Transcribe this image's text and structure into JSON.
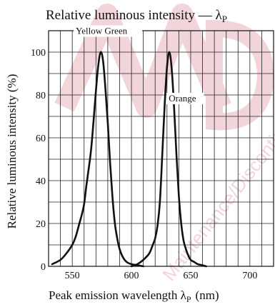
{
  "chart_data": {
    "type": "line",
    "title": "Relative luminous intensity — λ",
    "title_subscript": "P",
    "xlabel": "Peak emission wavelength λ",
    "xlabel_subscript": "P",
    "xlabel_unit": "(nm)",
    "ylabel": "Relative luminous intensity  (%)",
    "xlim": [
      530,
      720
    ],
    "ylim": [
      0,
      110
    ],
    "x_ticks": [
      550,
      600,
      650,
      700
    ],
    "y_ticks": [
      0,
      20,
      40,
      60,
      80,
      100
    ],
    "x_grid": [
      530,
      540,
      550,
      560,
      570,
      580,
      590,
      600,
      610,
      620,
      630,
      640,
      650,
      660,
      670,
      680,
      690,
      700,
      710,
      720
    ],
    "y_grid": [
      0,
      10,
      20,
      30,
      40,
      50,
      60,
      70,
      80,
      90,
      100,
      110
    ],
    "grid": true,
    "series": [
      {
        "name": "Yellow Green",
        "x": [
          533,
          540,
          545,
          550,
          553,
          556,
          558,
          560,
          562,
          564,
          566,
          568,
          570,
          572,
          574,
          576,
          578,
          580,
          582,
          584,
          586,
          588,
          590,
          593,
          596,
          600,
          605,
          610
        ],
        "values": [
          1,
          3,
          6,
          10,
          14,
          20,
          24,
          29,
          38,
          46,
          55,
          68,
          82,
          94,
          100,
          96,
          83,
          67,
          48,
          32,
          20,
          13,
          8,
          4,
          2,
          1,
          0.5,
          0
        ]
      },
      {
        "name": "Orange",
        "x": [
          600,
          605,
          610,
          615,
          618,
          620,
          622,
          624,
          626,
          628,
          630,
          632,
          634,
          636,
          638,
          640,
          642,
          644,
          646,
          648,
          650,
          653,
          656,
          660,
          663
        ],
        "values": [
          0,
          1,
          3,
          6,
          10,
          13,
          19,
          30,
          52,
          75,
          93,
          100,
          92,
          74,
          52,
          33,
          20,
          12,
          8,
          5,
          3,
          2,
          1,
          0.5,
          0
        ]
      }
    ]
  },
  "watermark": {
    "text": "Maintenance/Discontinued",
    "color": "#e8b4bc"
  },
  "colors": {
    "curve": "#111111",
    "grid": "#222222",
    "text": "#111111"
  }
}
